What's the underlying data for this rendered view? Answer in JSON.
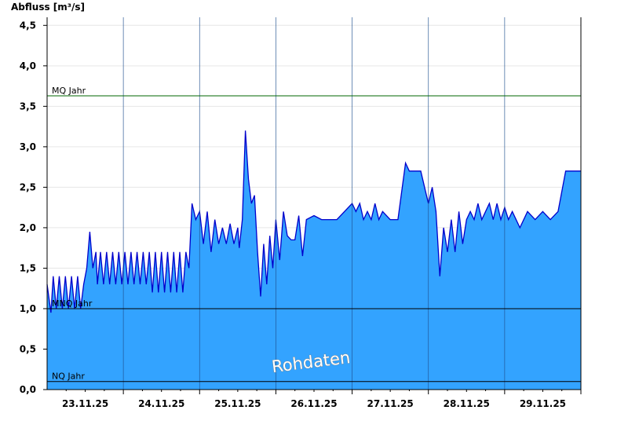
{
  "chart_data": {
    "type": "area",
    "title": "",
    "ylabel": "Abfluss [m³/s]",
    "xlabel": "",
    "ylim": [
      0,
      4.6
    ],
    "yticks": [
      0,
      0.5,
      1.0,
      1.5,
      2.0,
      2.5,
      3.0,
      3.5,
      4.0,
      4.5
    ],
    "ytick_labels": [
      "0,0",
      "0,5",
      "1,0",
      "1,5",
      "2,0",
      "2,5",
      "3,0",
      "3,5",
      "4,0",
      "4,5"
    ],
    "xlim": [
      0,
      7
    ],
    "day_labels": [
      "23.11.25",
      "24.11.25",
      "25.11.25",
      "26.11.25",
      "27.11.25",
      "28.11.25",
      "29.11.25"
    ],
    "grid": true,
    "series": [
      {
        "fill_color": "#33a3ff",
        "line_color": "#0000cc",
        "x": [
          0,
          0.05,
          0.08,
          0.12,
          0.16,
          0.2,
          0.24,
          0.28,
          0.32,
          0.36,
          0.4,
          0.44,
          0.48,
          0.52,
          0.56,
          0.6,
          0.64,
          0.66,
          0.7,
          0.74,
          0.78,
          0.82,
          0.86,
          0.9,
          0.94,
          0.98,
          1.02,
          1.06,
          1.1,
          1.14,
          1.18,
          1.22,
          1.26,
          1.3,
          1.34,
          1.38,
          1.42,
          1.46,
          1.5,
          1.54,
          1.58,
          1.62,
          1.66,
          1.7,
          1.74,
          1.78,
          1.82,
          1.86,
          1.9,
          1.95,
          2.0,
          2.05,
          2.1,
          2.15,
          2.2,
          2.25,
          2.3,
          2.35,
          2.4,
          2.45,
          2.5,
          2.52,
          2.56,
          2.6,
          2.64,
          2.68,
          2.72,
          2.76,
          2.8,
          2.84,
          2.88,
          2.92,
          2.96,
          3.0,
          3.05,
          3.1,
          3.15,
          3.2,
          3.25,
          3.3,
          3.35,
          3.4,
          3.5,
          3.6,
          3.8,
          4.0,
          4.05,
          4.1,
          4.15,
          4.2,
          4.25,
          4.3,
          4.35,
          4.4,
          4.5,
          4.6,
          4.7,
          4.75,
          4.8,
          4.9,
          5.0,
          5.05,
          5.1,
          5.15,
          5.2,
          5.25,
          5.3,
          5.35,
          5.4,
          5.45,
          5.5,
          5.55,
          5.6,
          5.65,
          5.7,
          5.8,
          5.85,
          5.9,
          5.95,
          6.0,
          6.05,
          6.1,
          6.2,
          6.3,
          6.4,
          6.5,
          6.6,
          6.7,
          6.8,
          6.9,
          7.0
        ],
        "values": [
          1.3,
          0.95,
          1.4,
          1.0,
          1.4,
          1.0,
          1.4,
          1.0,
          1.4,
          1.0,
          1.4,
          1.0,
          1.3,
          1.5,
          1.95,
          1.5,
          1.7,
          1.3,
          1.7,
          1.3,
          1.7,
          1.3,
          1.7,
          1.3,
          1.7,
          1.3,
          1.7,
          1.3,
          1.7,
          1.3,
          1.7,
          1.3,
          1.7,
          1.3,
          1.7,
          1.2,
          1.7,
          1.2,
          1.7,
          1.2,
          1.7,
          1.2,
          1.7,
          1.2,
          1.7,
          1.2,
          1.7,
          1.5,
          2.3,
          2.1,
          2.2,
          1.8,
          2.2,
          1.7,
          2.1,
          1.8,
          2.0,
          1.8,
          2.05,
          1.8,
          2.0,
          1.75,
          2.1,
          3.2,
          2.6,
          2.3,
          2.4,
          1.7,
          1.15,
          1.8,
          1.3,
          1.9,
          1.5,
          2.1,
          1.6,
          2.2,
          1.9,
          1.85,
          1.85,
          2.15,
          1.65,
          2.1,
          2.15,
          2.1,
          2.1,
          2.3,
          2.2,
          2.3,
          2.1,
          2.2,
          2.1,
          2.3,
          2.1,
          2.2,
          2.1,
          2.1,
          2.8,
          2.7,
          2.7,
          2.7,
          2.3,
          2.5,
          2.2,
          1.4,
          2.0,
          1.7,
          2.1,
          1.7,
          2.2,
          1.8,
          2.1,
          2.2,
          2.1,
          2.3,
          2.1,
          2.3,
          2.1,
          2.3,
          2.1,
          2.25,
          2.1,
          2.2,
          2.0,
          2.2,
          2.1,
          2.2,
          2.1,
          2.2,
          2.7,
          2.7,
          2.7
        ]
      }
    ],
    "reference_lines": [
      {
        "label": "MQ Jahr",
        "value": 3.63,
        "color": "#006600"
      },
      {
        "label": "MNQ Jahr",
        "value": 1.0,
        "color": "#000000"
      },
      {
        "label": "NQ Jahr",
        "value": 0.1,
        "color": "#000000"
      }
    ],
    "watermark": "Rohdaten"
  }
}
